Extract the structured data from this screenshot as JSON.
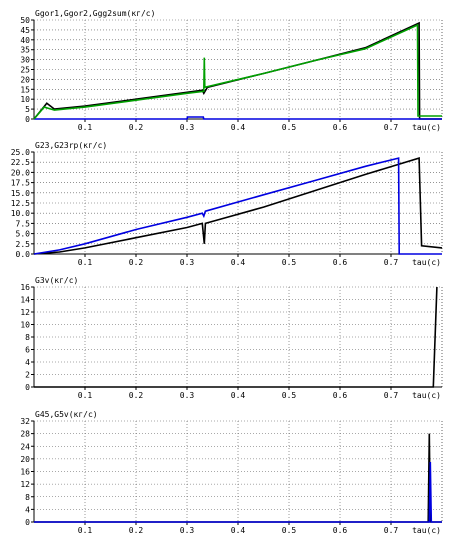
{
  "chart_data": [
    {
      "type": "line",
      "title": "Ggor1,Ggor2,Ggg2sum(кг/с)",
      "xlabel": "tau(c)",
      "xlim": [
        0,
        0.8
      ],
      "ylim": [
        0,
        50
      ],
      "xticks": [
        0.1,
        0.2,
        0.3,
        0.4,
        0.5,
        0.6,
        0.7
      ],
      "yticks": [
        0,
        5,
        10,
        15,
        20,
        25,
        30,
        35,
        40,
        45,
        50
      ],
      "grid": true,
      "series": [
        {
          "color": "#000000",
          "points": [
            [
              0,
              0
            ],
            [
              0.025,
              8
            ],
            [
              0.04,
              5
            ],
            [
              0.1,
              6.5
            ],
            [
              0.2,
              10
            ],
            [
              0.3,
              13.5
            ],
            [
              0.33,
              14.5
            ],
            [
              0.333,
              13
            ],
            [
              0.34,
              16
            ],
            [
              0.45,
              23
            ],
            [
              0.55,
              29.5
            ],
            [
              0.65,
              36
            ],
            [
              0.755,
              48.5
            ],
            [
              0.756,
              0
            ],
            [
              0.8,
              0
            ]
          ]
        },
        {
          "color": "#0000e0",
          "points": [
            [
              0,
              0
            ],
            [
              0.3,
              0
            ],
            [
              0.301,
              1
            ],
            [
              0.332,
              1
            ],
            [
              0.333,
              0
            ],
            [
              0.8,
              0
            ]
          ]
        },
        {
          "color": "#00a000",
          "points": [
            [
              0,
              0
            ],
            [
              0.02,
              6
            ],
            [
              0.04,
              4.5
            ],
            [
              0.1,
              6
            ],
            [
              0.2,
              9.5
            ],
            [
              0.3,
              13
            ],
            [
              0.333,
              14
            ],
            [
              0.334,
              31
            ],
            [
              0.335,
              16
            ],
            [
              0.45,
              23
            ],
            [
              0.55,
              29.5
            ],
            [
              0.65,
              35.5
            ],
            [
              0.752,
              47.5
            ],
            [
              0.753,
              1.5
            ],
            [
              0.8,
              1.5
            ]
          ]
        }
      ]
    },
    {
      "type": "line",
      "title": "G23,G23rp(кг/с)",
      "xlabel": "tau(c)",
      "xlim": [
        0,
        0.8
      ],
      "ylim": [
        0,
        25
      ],
      "xticks": [
        0.1,
        0.2,
        0.3,
        0.4,
        0.5,
        0.6,
        0.7
      ],
      "yticks": [
        "0.0",
        "2.5",
        "5.0",
        "7.5",
        "10.0",
        "12.5",
        "15.0",
        "17.5",
        "20.0",
        "22.5",
        "25.0"
      ],
      "grid": true,
      "series": [
        {
          "color": "#000000",
          "points": [
            [
              0,
              0
            ],
            [
              0.05,
              0.5
            ],
            [
              0.1,
              1.5
            ],
            [
              0.2,
              4
            ],
            [
              0.3,
              6.5
            ],
            [
              0.33,
              7.5
            ],
            [
              0.334,
              2.5
            ],
            [
              0.336,
              7.5
            ],
            [
              0.35,
              8
            ],
            [
              0.45,
              11.5
            ],
            [
              0.55,
              15.5
            ],
            [
              0.65,
              19.5
            ],
            [
              0.755,
              23.5
            ],
            [
              0.76,
              2
            ],
            [
              0.8,
              1.5
            ]
          ]
        },
        {
          "color": "#0000e0",
          "points": [
            [
              0,
              0
            ],
            [
              0.05,
              1
            ],
            [
              0.1,
              2.5
            ],
            [
              0.2,
              6
            ],
            [
              0.3,
              9
            ],
            [
              0.33,
              10
            ],
            [
              0.333,
              9.3
            ],
            [
              0.336,
              10.5
            ],
            [
              0.45,
              14.5
            ],
            [
              0.55,
              18
            ],
            [
              0.65,
              21.5
            ],
            [
              0.715,
              23.5
            ],
            [
              0.716,
              0
            ],
            [
              0.8,
              0
            ]
          ]
        }
      ]
    },
    {
      "type": "line",
      "title": "G3v(кг/с)",
      "xlabel": "tau(c)",
      "xlim": [
        0,
        0.8
      ],
      "ylim": [
        0,
        16
      ],
      "xticks": [
        0.1,
        0.2,
        0.3,
        0.4,
        0.5,
        0.6,
        0.7
      ],
      "yticks": [
        0,
        2,
        4,
        6,
        8,
        10,
        12,
        14,
        16
      ],
      "grid": true,
      "series": [
        {
          "color": "#000000",
          "points": [
            [
              0,
              0
            ],
            [
              0.783,
              0
            ],
            [
              0.79,
              16
            ]
          ]
        }
      ]
    },
    {
      "type": "line",
      "title": "G45,G5v(кг/с)",
      "xlabel": "tau(c)",
      "xlim": [
        0,
        0.8
      ],
      "ylim": [
        0,
        32
      ],
      "xticks": [
        0.1,
        0.2,
        0.3,
        0.4,
        0.5,
        0.6,
        0.7
      ],
      "yticks": [
        0,
        4,
        8,
        12,
        16,
        20,
        24,
        28,
        32
      ],
      "grid": true,
      "series": [
        {
          "color": "#000000",
          "points": [
            [
              0,
              0
            ],
            [
              0.773,
              0
            ],
            [
              0.775,
              28
            ],
            [
              0.777,
              0
            ],
            [
              0.8,
              0
            ]
          ]
        },
        {
          "color": "#0000e0",
          "points": [
            [
              0,
              0
            ],
            [
              0.775,
              0
            ],
            [
              0.777,
              19
            ],
            [
              0.779,
              0
            ],
            [
              0.8,
              0
            ]
          ]
        }
      ]
    }
  ]
}
